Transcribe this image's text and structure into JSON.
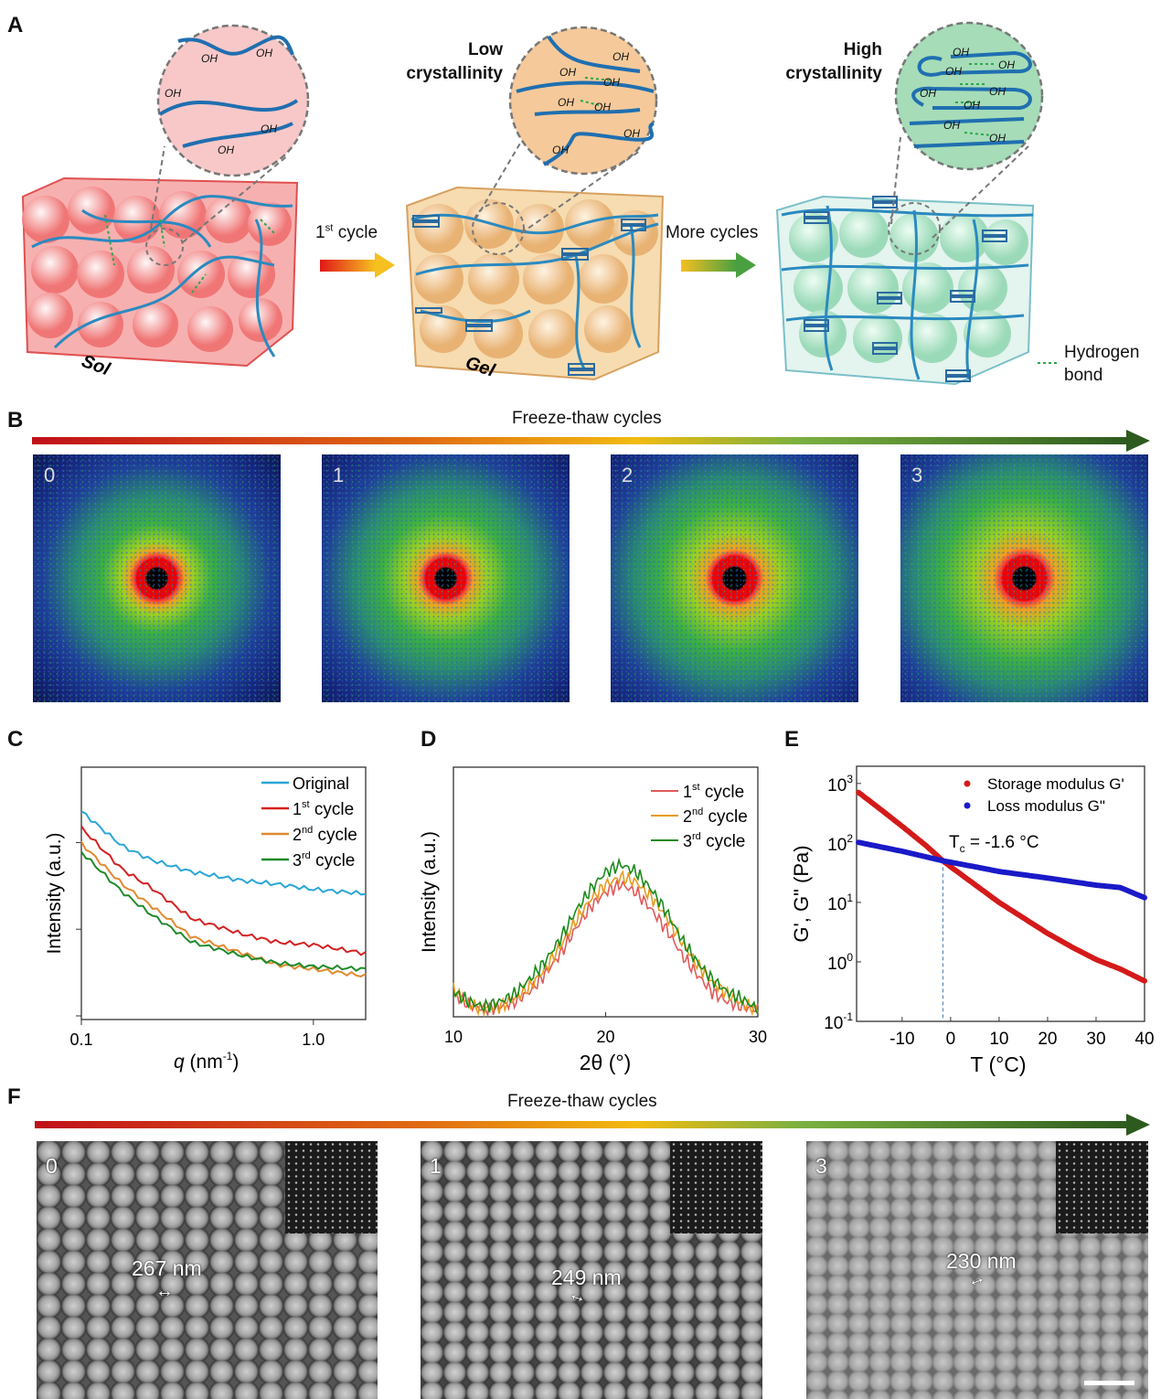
{
  "panels": {
    "a": "A",
    "b": "B",
    "c": "C",
    "d": "D",
    "e": "E",
    "f": "F"
  },
  "schematic": {
    "sol_label": "Sol",
    "gel_label": "Gel",
    "first_cycle": {
      "num": "1",
      "sup": "st",
      "text": " cycle"
    },
    "more_cycles": "More cycles",
    "low_crystallinity": [
      "Low",
      "crystallinity"
    ],
    "high_crystallinity": [
      "High",
      "crystallinity"
    ],
    "hydrogen_bond_legend": [
      "Hydrogen",
      "bond"
    ],
    "oh_label": "OH",
    "colors": {
      "sol": "#f07070",
      "gel": "#f0c080",
      "high": "#a8e0c8",
      "chain": "#1f7fc0",
      "hbond": "#2aa84a"
    }
  },
  "saxs": {
    "title": "Freeze-thaw cycles",
    "images": [
      {
        "label": "0"
      },
      {
        "label": "1"
      },
      {
        "label": "2"
      },
      {
        "label": "3"
      }
    ]
  },
  "sem": {
    "title": "Freeze-thaw cycles",
    "images": [
      {
        "label": "0",
        "size": "267 nm"
      },
      {
        "label": "1",
        "size": "249 nm"
      },
      {
        "label": "3",
        "size": "230 nm"
      }
    ]
  },
  "chart_data": [
    {
      "id": "C",
      "type": "line",
      "xscale": "log",
      "xlabel_var": "q",
      "xlabel_unit": " (nm",
      "xlabel_sup": "-1",
      "xlabel_end": ")",
      "ylabel": "Intensity (a.u.)",
      "xlim": [
        0.1,
        1.68
      ],
      "ylim": [
        0,
        2.87
      ],
      "xticks": [
        {
          "v": 0.1,
          "label": "0.1"
        },
        {
          "v": 1.0,
          "label": "1.0"
        }
      ],
      "yticks": [
        0,
        1,
        2
      ],
      "legend": "top-right",
      "x": [
        0.1,
        0.15,
        0.2,
        0.3,
        0.5,
        0.7,
        1.0,
        1.68
      ],
      "series": [
        {
          "name": "Original",
          "num": "",
          "sup": "",
          "text": "Original",
          "color": "#2aa6d6",
          "values": [
            2.36,
            1.96,
            1.8,
            1.66,
            1.56,
            1.52,
            1.46,
            1.41
          ]
        },
        {
          "name": "1st cycle",
          "num": "1",
          "sup": "st",
          "text": " cycle",
          "color": "#d42020",
          "values": [
            2.17,
            1.69,
            1.48,
            1.12,
            0.94,
            0.85,
            0.82,
            0.72
          ]
        },
        {
          "name": "2nd cycle",
          "num": "2",
          "sup": "nd",
          "text": " cycle",
          "color": "#e08a30",
          "values": [
            1.99,
            1.52,
            1.27,
            0.91,
            0.72,
            0.59,
            0.54,
            0.46
          ]
        },
        {
          "name": "3rd cycle",
          "num": "3",
          "sup": "rd",
          "text": " cycle",
          "color": "#1f8a2a",
          "values": [
            1.89,
            1.43,
            1.17,
            0.85,
            0.69,
            0.61,
            0.57,
            0.54
          ]
        }
      ]
    },
    {
      "id": "D",
      "type": "line",
      "xlabel": "2θ (°)",
      "ylabel": "Intensity (a.u.)",
      "xlim": [
        10,
        30
      ],
      "ylim": [
        0,
        1
      ],
      "xticks": [
        10,
        20,
        30
      ],
      "legend": "top-right",
      "x": [
        10,
        11,
        12,
        13,
        14,
        15,
        16,
        17,
        18,
        19,
        20,
        21,
        22,
        23,
        24,
        25,
        26,
        27,
        28,
        29,
        30
      ],
      "series": [
        {
          "name": "1st cycle",
          "num": "1",
          "sup": "st",
          "text": " cycle",
          "color": "#e05a5a",
          "values": [
            0.09,
            0.05,
            0.03,
            0.04,
            0.06,
            0.1,
            0.17,
            0.25,
            0.35,
            0.44,
            0.5,
            0.53,
            0.5,
            0.43,
            0.35,
            0.25,
            0.17,
            0.1,
            0.06,
            0.04,
            0.03
          ]
        },
        {
          "name": "2nd cycle",
          "num": "2",
          "sup": "nd",
          "text": " cycle",
          "color": "#e89a20",
          "values": [
            0.11,
            0.05,
            0.03,
            0.04,
            0.07,
            0.12,
            0.19,
            0.28,
            0.38,
            0.47,
            0.53,
            0.56,
            0.54,
            0.48,
            0.4,
            0.3,
            0.21,
            0.14,
            0.09,
            0.05,
            0.03
          ]
        },
        {
          "name": "3rd cycle",
          "num": "3",
          "sup": "rd",
          "text": " cycle",
          "color": "#1a8a1a",
          "values": [
            0.1,
            0.06,
            0.04,
            0.06,
            0.09,
            0.15,
            0.22,
            0.31,
            0.42,
            0.51,
            0.58,
            0.61,
            0.58,
            0.51,
            0.42,
            0.31,
            0.22,
            0.15,
            0.1,
            0.07,
            0.03
          ]
        }
      ]
    },
    {
      "id": "E",
      "type": "scatter",
      "yscale": "log",
      "xlabel": "T (°C)",
      "ylabel": "G', G\" (Pa)",
      "xlim": [
        -19.4,
        40
      ],
      "ylim_log10": [
        -1,
        3.29
      ],
      "xticks": [
        -10,
        0,
        10,
        20,
        30,
        40
      ],
      "yticks": [
        {
          "exp": "3"
        },
        {
          "exp": "2"
        },
        {
          "exp": "1"
        },
        {
          "exp": "0"
        },
        {
          "exp": "-1"
        }
      ],
      "ytick_base": "10",
      "legend": "top-right",
      "annotation": {
        "text": "T",
        "sub": "c",
        "rest": " = -1.6 °C",
        "x": -1.6
      },
      "series": [
        {
          "name": "Storage modulus G'",
          "color": "#d41a1a",
          "x": [
            -19,
            -15,
            -10,
            -5,
            -1.6,
            0,
            5,
            10,
            15,
            20,
            25,
            30,
            35,
            40
          ],
          "log10_values": [
            2.85,
            2.6,
            2.28,
            1.95,
            1.7,
            1.6,
            1.3,
            1.0,
            0.74,
            0.48,
            0.25,
            0.04,
            -0.12,
            -0.32
          ]
        },
        {
          "name": "Loss modulus G\"",
          "color": "#1a1ac8",
          "x": [
            -19,
            -10,
            -1.6,
            5,
            10,
            20,
            30,
            35,
            40
          ],
          "log10_values": [
            2.01,
            1.86,
            1.7,
            1.6,
            1.52,
            1.41,
            1.29,
            1.25,
            1.08
          ]
        }
      ]
    }
  ]
}
